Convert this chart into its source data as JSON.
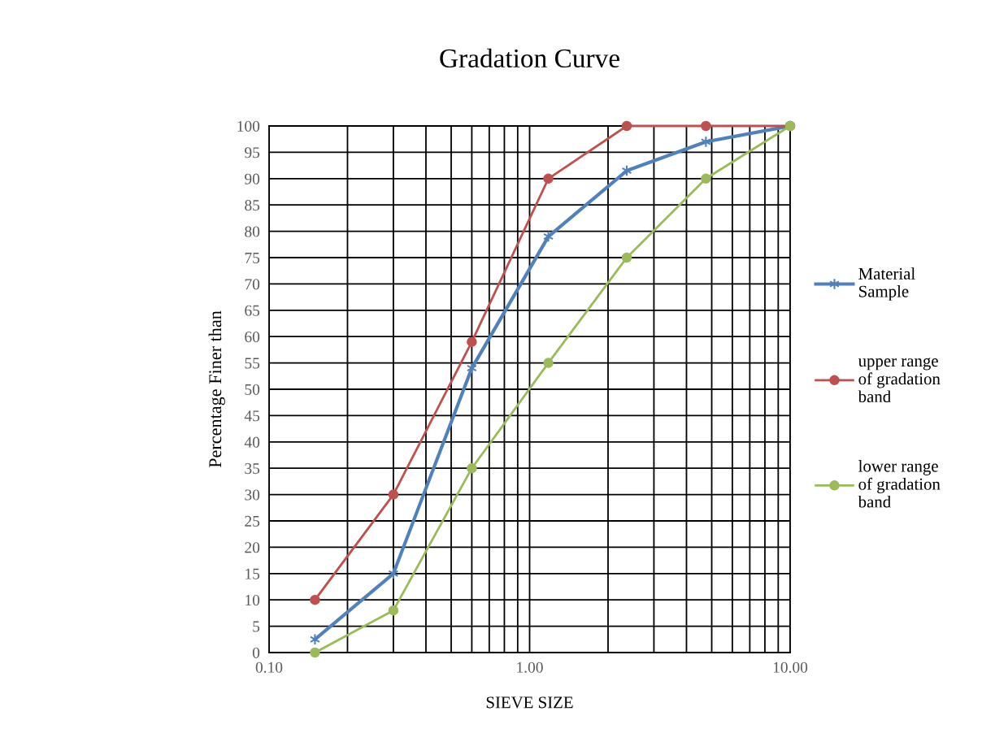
{
  "chart_data": {
    "type": "line",
    "title": "Gradation Curve",
    "xlabel": "SIEVE SIZE",
    "ylabel": "Percentage Finer than",
    "x": [
      0.15,
      0.3,
      0.6,
      1.18,
      2.36,
      4.75,
      10
    ],
    "series": [
      {
        "name": "Material\nSample",
        "color": "#4f81bd",
        "marker": "cross",
        "values": [
          2.5,
          15,
          54,
          79,
          91.5,
          97,
          100
        ]
      },
      {
        "name": "upper range\nof gradation\nband",
        "color": "#c0504d",
        "marker": "circle",
        "values": [
          10,
          30,
          59,
          90,
          100,
          100,
          100
        ]
      },
      {
        "name": "lower range\nof gradation\nband",
        "color": "#9bbb59",
        "marker": "circle",
        "values": [
          0,
          8,
          35,
          55,
          75,
          90,
          100
        ]
      }
    ],
    "log": "x",
    "xlim": [
      0.1,
      10
    ],
    "ylim": [
      0,
      100
    ],
    "xticks": [
      {
        "value": 0.1,
        "label": "0.10"
      },
      {
        "value": 0.2,
        "label": null
      },
      {
        "value": 0.3,
        "label": null
      },
      {
        "value": 0.4,
        "label": null
      },
      {
        "value": 0.5,
        "label": null
      },
      {
        "value": 0.6,
        "label": null
      },
      {
        "value": 0.7,
        "label": null
      },
      {
        "value": 0.8,
        "label": null
      },
      {
        "value": 0.9,
        "label": null
      },
      {
        "value": 1,
        "label": "1.00"
      },
      {
        "value": 2,
        "label": null
      },
      {
        "value": 3,
        "label": null
      },
      {
        "value": 4,
        "label": null
      },
      {
        "value": 5,
        "label": null
      },
      {
        "value": 6,
        "label": null
      },
      {
        "value": 7,
        "label": null
      },
      {
        "value": 8,
        "label": null
      },
      {
        "value": 9,
        "label": null
      },
      {
        "value": 10,
        "label": "10.00"
      }
    ],
    "yticks": [
      0,
      5,
      10,
      15,
      20,
      25,
      30,
      35,
      40,
      45,
      50,
      55,
      60,
      65,
      70,
      75,
      80,
      85,
      90,
      95,
      100
    ],
    "grid": true,
    "legend": "right",
    "line_style": "solid"
  }
}
